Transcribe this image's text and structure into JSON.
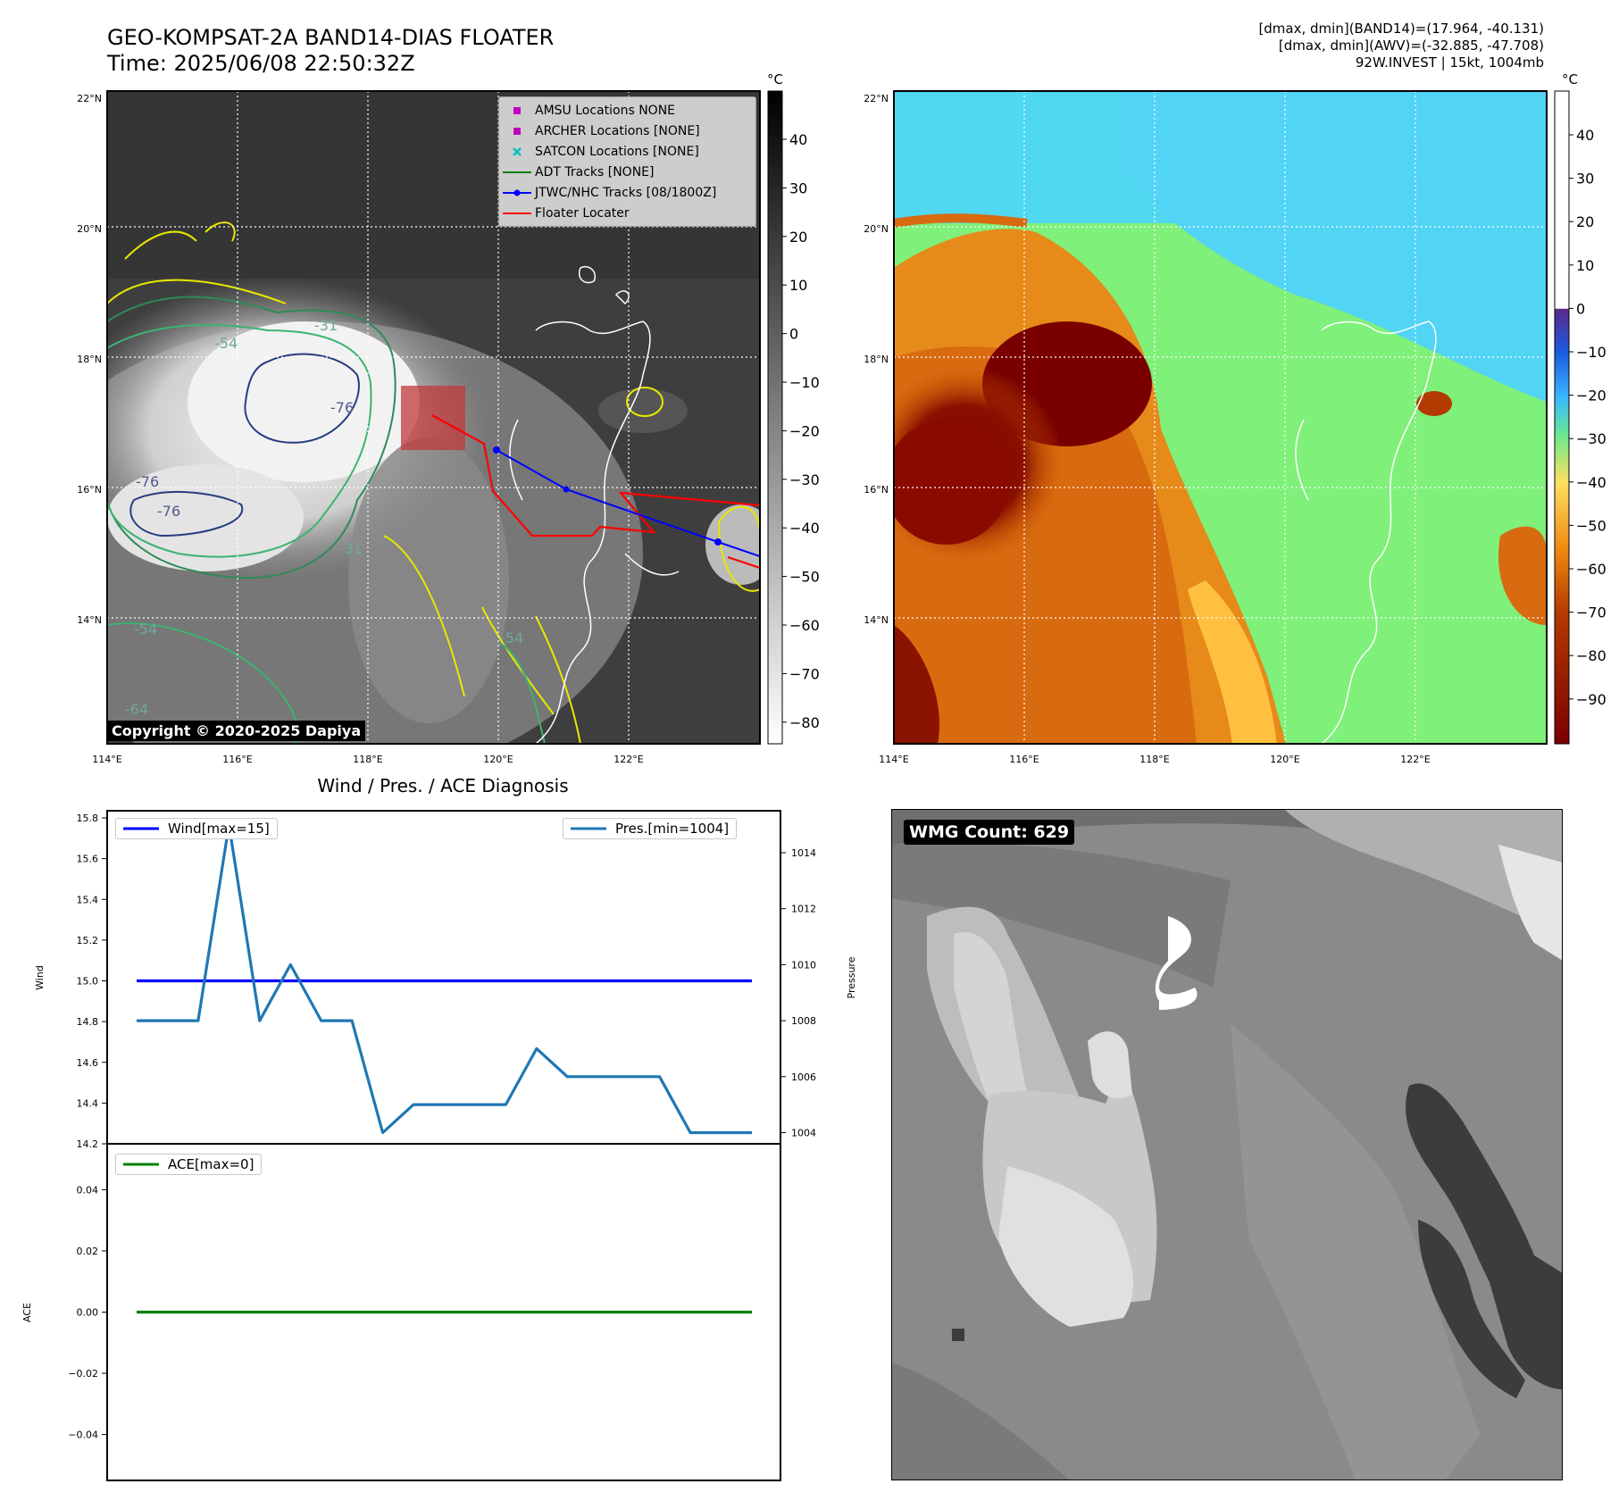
{
  "title_line1": "GEO-KOMPSAT-2A BAND14-DIAS FLOATER",
  "title_line2": "Time: 2025/06/08 22:50:32Z",
  "info_lines": [
    "[dmax, dmin](BAND14)=(17.964, -40.131)",
    "[dmax, dmin](AWV)=(-32.885, -47.708)",
    "92W.INVEST | 15kt, 1004mb"
  ],
  "map_lat_labels": [
    "22°N",
    "20°N",
    "18°N",
    "16°N",
    "14°N"
  ],
  "map_lon_labels": [
    "114°E",
    "116°E",
    "118°E",
    "120°E",
    "122°E"
  ],
  "colorbar_unit": "°C",
  "colorbar1_ticks": [
    "40",
    "30",
    "20",
    "10",
    "0",
    "−10",
    "−20",
    "−30",
    "−40",
    "−50",
    "−60",
    "−70",
    "−80"
  ],
  "colorbar2_ticks": [
    "40",
    "30",
    "20",
    "10",
    "0",
    "−10",
    "−20",
    "−30",
    "−40",
    "−50",
    "−60",
    "−70",
    "−80",
    "−90"
  ],
  "contour_labels": [
    "-76",
    "-76",
    "-76",
    "-31",
    "-54",
    "-54",
    "-54",
    "-64",
    "-31"
  ],
  "map_legend": [
    {
      "label": "AMSU Locations NONE",
      "symbol": "square",
      "color": "#bf00bf"
    },
    {
      "label": "ARCHER Locations [NONE]",
      "symbol": "square",
      "color": "#bf00bf"
    },
    {
      "label": "SATCON Locations [NONE]",
      "symbol": "x",
      "color": "#00bfbf"
    },
    {
      "label": "ADT Tracks [NONE]",
      "symbol": "line",
      "color": "#008000"
    },
    {
      "label": "JTWC/NHC Tracks [08/1800Z]",
      "symbol": "line-dot",
      "color": "#0000ff"
    },
    {
      "label": "Floater Locater",
      "symbol": "line",
      "color": "#ff0000"
    }
  ],
  "copyright": "Copyright © 2020-2025 Dapiya",
  "wmg_label": "WMG Count: 629",
  "chart_data": [
    {
      "type": "line",
      "title": "Wind / Pres. / ACE Diagnosis",
      "ylabel": "Wind",
      "y2label": "Pressure",
      "ylim": [
        14.2,
        15.8
      ],
      "y2lim": [
        1003.6,
        1015.5
      ],
      "y_ticks": [
        "15.8",
        "15.6",
        "15.4",
        "15.2",
        "15.0",
        "14.8",
        "14.6",
        "14.4",
        "14.2"
      ],
      "y2_ticks": [
        "1014",
        "1012",
        "1010",
        "1008",
        "1006",
        "1004"
      ],
      "series": [
        {
          "name": "Wind[max=15]",
          "axis": "left",
          "color": "#0000ff",
          "values": [
            15,
            15,
            15,
            15,
            15,
            15,
            15,
            15,
            15,
            15,
            15,
            15,
            15,
            15,
            15,
            15,
            15,
            15,
            15,
            15,
            15
          ]
        },
        {
          "name": "Pres.[min=1004]",
          "axis": "right",
          "color": "#1f77b4",
          "values": [
            1008,
            1008,
            1008,
            1015,
            1008,
            1010,
            1008,
            1008,
            1004,
            1005,
            1005,
            1005,
            1005,
            1007,
            1006,
            1006,
            1006,
            1006,
            1004,
            1004,
            1004
          ]
        }
      ]
    },
    {
      "type": "line",
      "ylabel": "ACE",
      "ylim": [
        -0.055,
        0.055
      ],
      "y_ticks": [
        "0.04",
        "0.02",
        "0.00",
        "−0.02",
        "−0.04"
      ],
      "series": [
        {
          "name": "ACE[max=0]",
          "color": "#008000",
          "values": [
            0,
            0,
            0,
            0,
            0,
            0,
            0,
            0,
            0,
            0,
            0,
            0,
            0,
            0,
            0,
            0,
            0,
            0,
            0,
            0,
            0
          ]
        }
      ]
    }
  ]
}
